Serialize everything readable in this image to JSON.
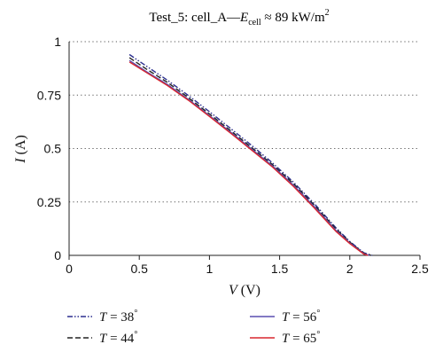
{
  "chart_data": {
    "type": "line",
    "title": {
      "prefix": "Test_5: cell_A—",
      "symbol": "E",
      "subscript": "cell",
      "relation": " ≈ 89 kW/m",
      "superscript": "2"
    },
    "xlabel": {
      "symbol": "V",
      "unit": " (V)"
    },
    "ylabel": {
      "symbol": "I",
      "unit": " (A)"
    },
    "xlim": [
      0,
      2.5
    ],
    "ylim": [
      0,
      1
    ],
    "xticks": [
      0,
      0.5,
      1,
      1.5,
      2,
      2.5
    ],
    "xtick_labels": [
      "0",
      "0.5",
      "1",
      "1.5",
      "2",
      "2.5"
    ],
    "yticks": [
      0,
      0.25,
      0.5,
      0.75,
      1
    ],
    "ytick_labels": [
      "0",
      "0.25",
      "0.5",
      "0.75",
      "1"
    ],
    "grid": "horizontal dotted",
    "legend_position": "bottom",
    "series": [
      {
        "name": "T = 38°",
        "symbol": "T",
        "value": " = 38",
        "deg": "°",
        "color": "#2b2f8f",
        "dash": "6,2,1.5,2,1.5,2",
        "x": [
          0.43,
          0.55,
          0.7,
          0.85,
          1.0,
          1.15,
          1.3,
          1.45,
          1.6,
          1.75,
          1.9,
          2.0,
          2.1,
          2.16
        ],
        "y": [
          0.94,
          0.886,
          0.82,
          0.748,
          0.672,
          0.594,
          0.515,
          0.432,
          0.342,
          0.24,
          0.13,
          0.065,
          0.012,
          0.0
        ]
      },
      {
        "name": "T = 44°",
        "symbol": "T",
        "value": " = 44",
        "deg": "°",
        "color": "#222222",
        "dash": "6,3",
        "x": [
          0.43,
          0.55,
          0.7,
          0.85,
          1.0,
          1.15,
          1.3,
          1.45,
          1.6,
          1.75,
          1.9,
          2.0,
          2.1,
          2.15
        ],
        "y": [
          0.925,
          0.872,
          0.81,
          0.738,
          0.662,
          0.584,
          0.505,
          0.424,
          0.335,
          0.233,
          0.124,
          0.062,
          0.01,
          0.0
        ]
      },
      {
        "name": "T = 56°",
        "symbol": "T",
        "value": " = 56",
        "deg": "°",
        "color": "#5a4fb0",
        "dash": "",
        "x": [
          0.43,
          0.55,
          0.7,
          0.85,
          1.0,
          1.15,
          1.3,
          1.45,
          1.6,
          1.75,
          1.9,
          2.0,
          2.1,
          2.14
        ],
        "y": [
          0.912,
          0.86,
          0.8,
          0.73,
          0.654,
          0.577,
          0.498,
          0.418,
          0.328,
          0.226,
          0.118,
          0.058,
          0.008,
          0.0
        ]
      },
      {
        "name": "T = 65°",
        "symbol": "T",
        "value": " = 65",
        "deg": "°",
        "color": "#d8262e",
        "dash": "",
        "x": [
          0.43,
          0.55,
          0.7,
          0.85,
          1.0,
          1.15,
          1.3,
          1.45,
          1.6,
          1.75,
          1.9,
          2.0,
          2.1,
          2.13
        ],
        "y": [
          0.905,
          0.856,
          0.795,
          0.726,
          0.65,
          0.572,
          0.493,
          0.413,
          0.322,
          0.22,
          0.113,
          0.055,
          0.006,
          0.0
        ]
      }
    ]
  }
}
